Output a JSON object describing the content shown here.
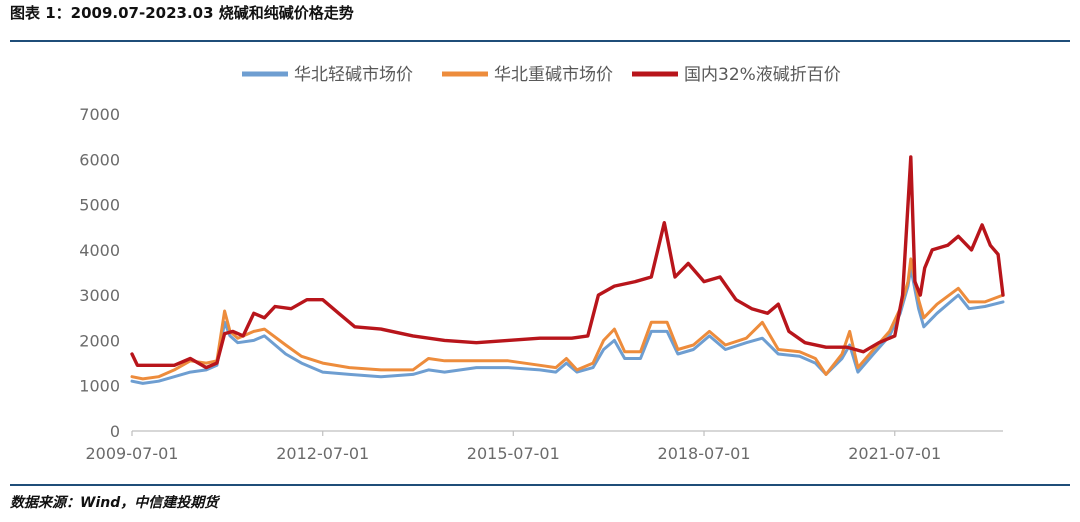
{
  "header": {
    "title": "图表 1：2009.07-2023.03 烧碱和纯碱价格走势"
  },
  "footer": {
    "source": "数据来源：Wind，中信建投期货"
  },
  "colors": {
    "light_soda": "#6e9ed1",
    "heavy_soda": "#ed8c3c",
    "caustic_soda": "#b8151b",
    "rule": "#1f4e79",
    "axis": "#bfbfbf",
    "tick_text": "#6b6b6b"
  },
  "chart_data": {
    "type": "line",
    "title": "",
    "xlabel": "",
    "ylabel": "",
    "ylim": [
      0,
      7000
    ],
    "yticks": [
      0,
      1000,
      2000,
      3000,
      4000,
      5000,
      6000,
      7000
    ],
    "xlim": [
      "2009-07-01",
      "2023-03-15"
    ],
    "xticks": [
      "2009-07-01",
      "2012-07-01",
      "2015-07-01",
      "2018-07-01",
      "2021-07-01"
    ],
    "grid": false,
    "legend_position": "top",
    "series": [
      {
        "name": "华北轻碱市场价",
        "color": "#6e9ed1",
        "points": [
          [
            "2009-07-01",
            1100
          ],
          [
            "2009-09-01",
            1050
          ],
          [
            "2009-12-01",
            1100
          ],
          [
            "2010-03-01",
            1200
          ],
          [
            "2010-06-01",
            1300
          ],
          [
            "2010-09-01",
            1350
          ],
          [
            "2010-11-01",
            1450
          ],
          [
            "2010-12-15",
            2400
          ],
          [
            "2011-01-15",
            2100
          ],
          [
            "2011-03-01",
            1950
          ],
          [
            "2011-06-01",
            2000
          ],
          [
            "2011-08-01",
            2100
          ],
          [
            "2011-12-01",
            1700
          ],
          [
            "2012-03-01",
            1500
          ],
          [
            "2012-07-01",
            1300
          ],
          [
            "2012-12-01",
            1250
          ],
          [
            "2013-06-01",
            1200
          ],
          [
            "2013-12-01",
            1250
          ],
          [
            "2014-03-01",
            1350
          ],
          [
            "2014-06-01",
            1300
          ],
          [
            "2014-12-01",
            1400
          ],
          [
            "2015-06-01",
            1400
          ],
          [
            "2015-12-01",
            1350
          ],
          [
            "2016-03-01",
            1300
          ],
          [
            "2016-05-01",
            1500
          ],
          [
            "2016-07-01",
            1300
          ],
          [
            "2016-10-01",
            1400
          ],
          [
            "2016-12-01",
            1800
          ],
          [
            "2017-02-01",
            2000
          ],
          [
            "2017-04-01",
            1600
          ],
          [
            "2017-07-01",
            1600
          ],
          [
            "2017-09-01",
            2200
          ],
          [
            "2017-12-01",
            2200
          ],
          [
            "2018-02-01",
            1700
          ],
          [
            "2018-05-01",
            1800
          ],
          [
            "2018-08-01",
            2100
          ],
          [
            "2018-11-01",
            1800
          ],
          [
            "2019-03-01",
            1950
          ],
          [
            "2019-06-01",
            2050
          ],
          [
            "2019-09-01",
            1700
          ],
          [
            "2020-01-01",
            1650
          ],
          [
            "2020-04-01",
            1500
          ],
          [
            "2020-06-01",
            1250
          ],
          [
            "2020-09-01",
            1600
          ],
          [
            "2020-10-15",
            1900
          ],
          [
            "2020-12-01",
            1300
          ],
          [
            "2021-03-01",
            1700
          ],
          [
            "2021-06-01",
            2100
          ],
          [
            "2021-08-01",
            2600
          ],
          [
            "2021-09-15",
            3200
          ],
          [
            "2021-10-01",
            3600
          ],
          [
            "2021-11-15",
            2700
          ],
          [
            "2021-12-15",
            2300
          ],
          [
            "2022-03-01",
            2600
          ],
          [
            "2022-07-01",
            3000
          ],
          [
            "2022-09-01",
            2700
          ],
          [
            "2022-12-01",
            2750
          ],
          [
            "2023-03-15",
            2850
          ]
        ]
      },
      {
        "name": "华北重碱市场价",
        "color": "#ed8c3c",
        "points": [
          [
            "2009-07-01",
            1200
          ],
          [
            "2009-09-01",
            1150
          ],
          [
            "2009-12-01",
            1200
          ],
          [
            "2010-03-01",
            1350
          ],
          [
            "2010-06-01",
            1550
          ],
          [
            "2010-09-01",
            1500
          ],
          [
            "2010-11-01",
            1550
          ],
          [
            "2010-12-15",
            2650
          ],
          [
            "2011-01-15",
            2200
          ],
          [
            "2011-03-01",
            2050
          ],
          [
            "2011-06-01",
            2200
          ],
          [
            "2011-08-01",
            2250
          ],
          [
            "2011-12-01",
            1900
          ],
          [
            "2012-03-01",
            1650
          ],
          [
            "2012-07-01",
            1500
          ],
          [
            "2012-12-01",
            1400
          ],
          [
            "2013-06-01",
            1350
          ],
          [
            "2013-12-01",
            1350
          ],
          [
            "2014-03-01",
            1600
          ],
          [
            "2014-06-01",
            1550
          ],
          [
            "2014-12-01",
            1550
          ],
          [
            "2015-06-01",
            1550
          ],
          [
            "2015-12-01",
            1450
          ],
          [
            "2016-03-01",
            1400
          ],
          [
            "2016-05-01",
            1600
          ],
          [
            "2016-07-01",
            1350
          ],
          [
            "2016-10-01",
            1500
          ],
          [
            "2016-12-01",
            2000
          ],
          [
            "2017-02-01",
            2250
          ],
          [
            "2017-04-01",
            1750
          ],
          [
            "2017-07-01",
            1750
          ],
          [
            "2017-09-01",
            2400
          ],
          [
            "2017-12-01",
            2400
          ],
          [
            "2018-02-01",
            1800
          ],
          [
            "2018-05-01",
            1900
          ],
          [
            "2018-08-01",
            2200
          ],
          [
            "2018-11-01",
            1900
          ],
          [
            "2019-03-01",
            2050
          ],
          [
            "2019-06-01",
            2400
          ],
          [
            "2019-09-01",
            1800
          ],
          [
            "2020-01-01",
            1750
          ],
          [
            "2020-04-01",
            1600
          ],
          [
            "2020-06-01",
            1250
          ],
          [
            "2020-09-01",
            1700
          ],
          [
            "2020-10-15",
            2200
          ],
          [
            "2020-12-01",
            1400
          ],
          [
            "2021-03-01",
            1800
          ],
          [
            "2021-06-01",
            2200
          ],
          [
            "2021-08-01",
            2700
          ],
          [
            "2021-09-15",
            3300
          ],
          [
            "2021-10-01",
            3800
          ],
          [
            "2021-11-15",
            2900
          ],
          [
            "2021-12-15",
            2500
          ],
          [
            "2022-03-01",
            2800
          ],
          [
            "2022-07-01",
            3150
          ],
          [
            "2022-09-01",
            2850
          ],
          [
            "2022-12-01",
            2850
          ],
          [
            "2023-03-15",
            3000
          ]
        ]
      },
      {
        "name": "国内32%液碱折百价",
        "color": "#b8151b",
        "points": [
          [
            "2009-07-01",
            1700
          ],
          [
            "2009-08-01",
            1450
          ],
          [
            "2010-03-01",
            1450
          ],
          [
            "2010-06-01",
            1600
          ],
          [
            "2010-09-01",
            1400
          ],
          [
            "2010-11-01",
            1500
          ],
          [
            "2010-12-15",
            2150
          ],
          [
            "2011-02-01",
            2200
          ],
          [
            "2011-04-01",
            2100
          ],
          [
            "2011-06-01",
            2600
          ],
          [
            "2011-08-01",
            2500
          ],
          [
            "2011-10-01",
            2750
          ],
          [
            "2012-01-01",
            2700
          ],
          [
            "2012-04-01",
            2900
          ],
          [
            "2012-07-01",
            2900
          ],
          [
            "2012-10-01",
            2600
          ],
          [
            "2013-01-01",
            2300
          ],
          [
            "2013-06-01",
            2250
          ],
          [
            "2013-12-01",
            2100
          ],
          [
            "2014-06-01",
            2000
          ],
          [
            "2014-12-01",
            1950
          ],
          [
            "2015-06-01",
            2000
          ],
          [
            "2015-12-01",
            2050
          ],
          [
            "2016-06-01",
            2050
          ],
          [
            "2016-09-01",
            2100
          ],
          [
            "2016-11-01",
            3000
          ],
          [
            "2017-02-01",
            3200
          ],
          [
            "2017-06-01",
            3300
          ],
          [
            "2017-09-01",
            3400
          ],
          [
            "2017-11-15",
            4600
          ],
          [
            "2018-01-15",
            3400
          ],
          [
            "2018-04-01",
            3700
          ],
          [
            "2018-07-01",
            3300
          ],
          [
            "2018-10-01",
            3400
          ],
          [
            "2019-01-01",
            2900
          ],
          [
            "2019-04-01",
            2700
          ],
          [
            "2019-07-01",
            2600
          ],
          [
            "2019-09-01",
            2800
          ],
          [
            "2019-11-01",
            2200
          ],
          [
            "2020-02-01",
            1950
          ],
          [
            "2020-06-01",
            1850
          ],
          [
            "2020-10-01",
            1850
          ],
          [
            "2021-01-01",
            1750
          ],
          [
            "2021-04-01",
            1950
          ],
          [
            "2021-07-01",
            2100
          ],
          [
            "2021-08-15",
            3000
          ],
          [
            "2021-10-01",
            6050
          ],
          [
            "2021-10-25",
            3300
          ],
          [
            "2021-11-25",
            3000
          ],
          [
            "2021-12-20",
            3600
          ],
          [
            "2022-02-01",
            4000
          ],
          [
            "2022-05-01",
            4100
          ],
          [
            "2022-07-01",
            4300
          ],
          [
            "2022-09-15",
            4000
          ],
          [
            "2022-11-15",
            4550
          ],
          [
            "2023-01-01",
            4100
          ],
          [
            "2023-02-15",
            3900
          ],
          [
            "2023-03-15",
            3000
          ]
        ]
      }
    ]
  }
}
